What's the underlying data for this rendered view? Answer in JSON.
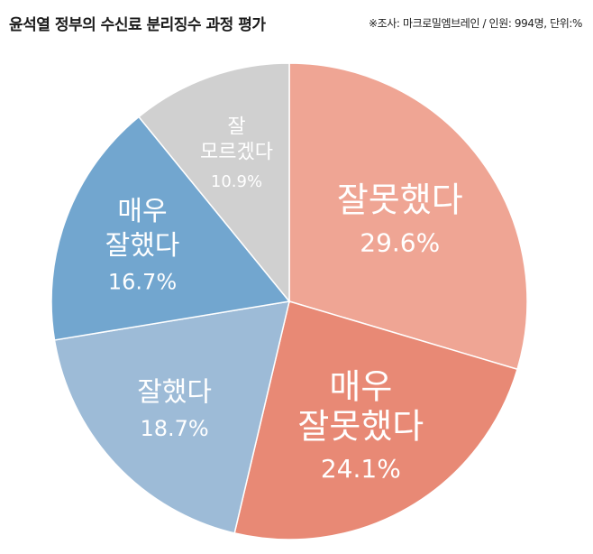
{
  "header": {
    "title": "윤석열 정부의 수신료 분리징수 과정 평가",
    "source": "※조사: 마크로밀엠브레인 / 인원: 994명, 단위:%"
  },
  "chart_data": {
    "type": "pie",
    "title": "윤석열 정부의 수신료 분리징수 과정 평가",
    "unit": "%",
    "slices": [
      {
        "label": [
          "잘못했다"
        ],
        "value": 29.6,
        "display": "29.6%",
        "color": "#EFA594"
      },
      {
        "label": [
          "매우",
          "잘못했다"
        ],
        "value": 24.1,
        "display": "24.1%",
        "color": "#E88975"
      },
      {
        "label": [
          "잘했다"
        ],
        "value": 18.7,
        "display": "18.7%",
        "color": "#9DBBD7"
      },
      {
        "label": [
          "매우",
          "잘했다"
        ],
        "value": 16.7,
        "display": "16.7%",
        "color": "#72A6CF"
      },
      {
        "label": [
          "잘",
          "모르겠다"
        ],
        "value": 10.9,
        "display": "10.9%",
        "color": "#D0D0D0"
      }
    ]
  }
}
